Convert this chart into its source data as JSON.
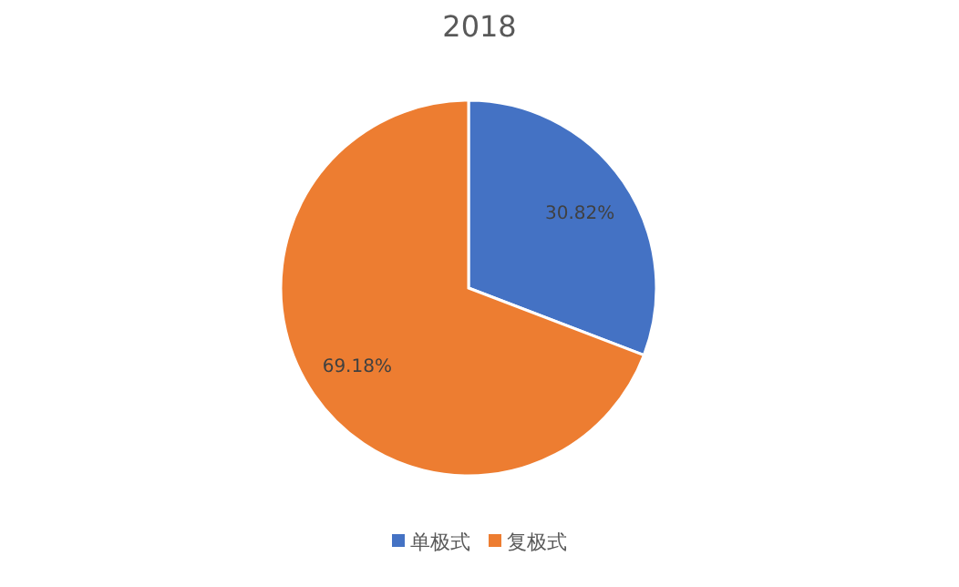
{
  "chart_data": {
    "type": "pie",
    "title": "2018",
    "categories": [
      "单极式",
      "复极式"
    ],
    "values": [
      30.82,
      69.18
    ],
    "colors": [
      "#4472c4",
      "#ed7d31"
    ],
    "value_labels": [
      "30.82%",
      "69.18%"
    ],
    "legend": "bottom"
  }
}
